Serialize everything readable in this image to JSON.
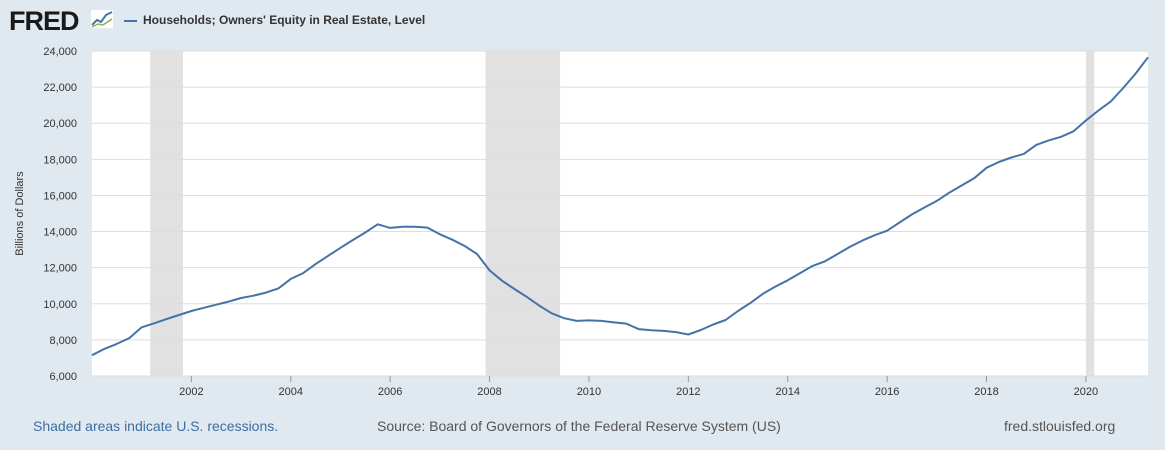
{
  "header": {
    "logo_text": "FRED",
    "logo_graph_icon": "line-graph-icon"
  },
  "footer": {
    "recession_note": "Shaded areas indicate U.S. recessions.",
    "source": "Source: Board of Governors of the Federal Reserve System (US)",
    "site": "fred.stlouisfed.org"
  },
  "colors": {
    "background": "#e1e9f0",
    "plot_background": "#ffffff",
    "series": "#4572a7",
    "recession": "#e1e1e1",
    "grid": "#dddddd"
  },
  "chart_data": {
    "type": "line",
    "ylabel": "Billions of Dollars",
    "ylim": [
      6000,
      24000
    ],
    "xlim": [
      2000.0,
      2021.25
    ],
    "y_ticks": [
      6000,
      8000,
      10000,
      12000,
      14000,
      16000,
      18000,
      20000,
      22000,
      24000
    ],
    "y_tick_labels": [
      "6,000",
      "8,000",
      "10,000",
      "12,000",
      "14,000",
      "16,000",
      "18,000",
      "20,000",
      "22,000",
      "24,000"
    ],
    "x_ticks": [
      2002,
      2004,
      2006,
      2008,
      2010,
      2012,
      2014,
      2016,
      2018,
      2020
    ],
    "x_tick_labels": [
      "2002",
      "2004",
      "2006",
      "2008",
      "2010",
      "2012",
      "2014",
      "2016",
      "2018",
      "2020"
    ],
    "grid": "horizontal",
    "recessions": [
      {
        "start": 2001.17,
        "end": 2001.83
      },
      {
        "start": 2007.92,
        "end": 2009.42
      },
      {
        "start": 2020.0,
        "end": 2020.17
      }
    ],
    "series": [
      {
        "name": "Households; Owners' Equity in Real Estate, Level",
        "x": [
          2000.0,
          2000.25,
          2000.5,
          2000.75,
          2001.0,
          2001.25,
          2001.5,
          2001.75,
          2002.0,
          2002.25,
          2002.5,
          2002.75,
          2003.0,
          2003.25,
          2003.5,
          2003.75,
          2004.0,
          2004.25,
          2004.5,
          2004.75,
          2005.0,
          2005.25,
          2005.5,
          2005.75,
          2006.0,
          2006.25,
          2006.5,
          2006.75,
          2007.0,
          2007.25,
          2007.5,
          2007.75,
          2008.0,
          2008.25,
          2008.5,
          2008.75,
          2009.0,
          2009.25,
          2009.5,
          2009.75,
          2010.0,
          2010.25,
          2010.5,
          2010.75,
          2011.0,
          2011.25,
          2011.5,
          2011.75,
          2012.0,
          2012.25,
          2012.5,
          2012.75,
          2013.0,
          2013.25,
          2013.5,
          2013.75,
          2014.0,
          2014.25,
          2014.5,
          2014.75,
          2015.0,
          2015.25,
          2015.5,
          2015.75,
          2016.0,
          2016.25,
          2016.5,
          2016.75,
          2017.0,
          2017.25,
          2017.5,
          2017.75,
          2018.0,
          2018.25,
          2018.5,
          2018.75,
          2019.0,
          2019.25,
          2019.5,
          2019.75,
          2020.0,
          2020.25,
          2020.5,
          2020.75,
          2021.0,
          2021.25
        ],
        "values": [
          7150,
          7500,
          7780,
          8100,
          8700,
          8920,
          9150,
          9380,
          9600,
          9780,
          9950,
          10120,
          10320,
          10450,
          10620,
          10850,
          11380,
          11700,
          12200,
          12650,
          13100,
          13530,
          13950,
          14400,
          14200,
          14270,
          14270,
          14220,
          13850,
          13550,
          13200,
          12750,
          11850,
          11280,
          10820,
          10380,
          9900,
          9470,
          9200,
          9050,
          9080,
          9050,
          8970,
          8900,
          8600,
          8530,
          8500,
          8430,
          8300,
          8550,
          8850,
          9100,
          9600,
          10050,
          10550,
          10950,
          11300,
          11700,
          12100,
          12350,
          12750,
          13150,
          13500,
          13800,
          14050,
          14500,
          14950,
          15330,
          15700,
          16150,
          16550,
          16950,
          17530,
          17850,
          18100,
          18300,
          18800,
          19050,
          19250,
          19550,
          20150,
          20700,
          21200,
          21950,
          22750,
          23650
        ]
      }
    ]
  }
}
